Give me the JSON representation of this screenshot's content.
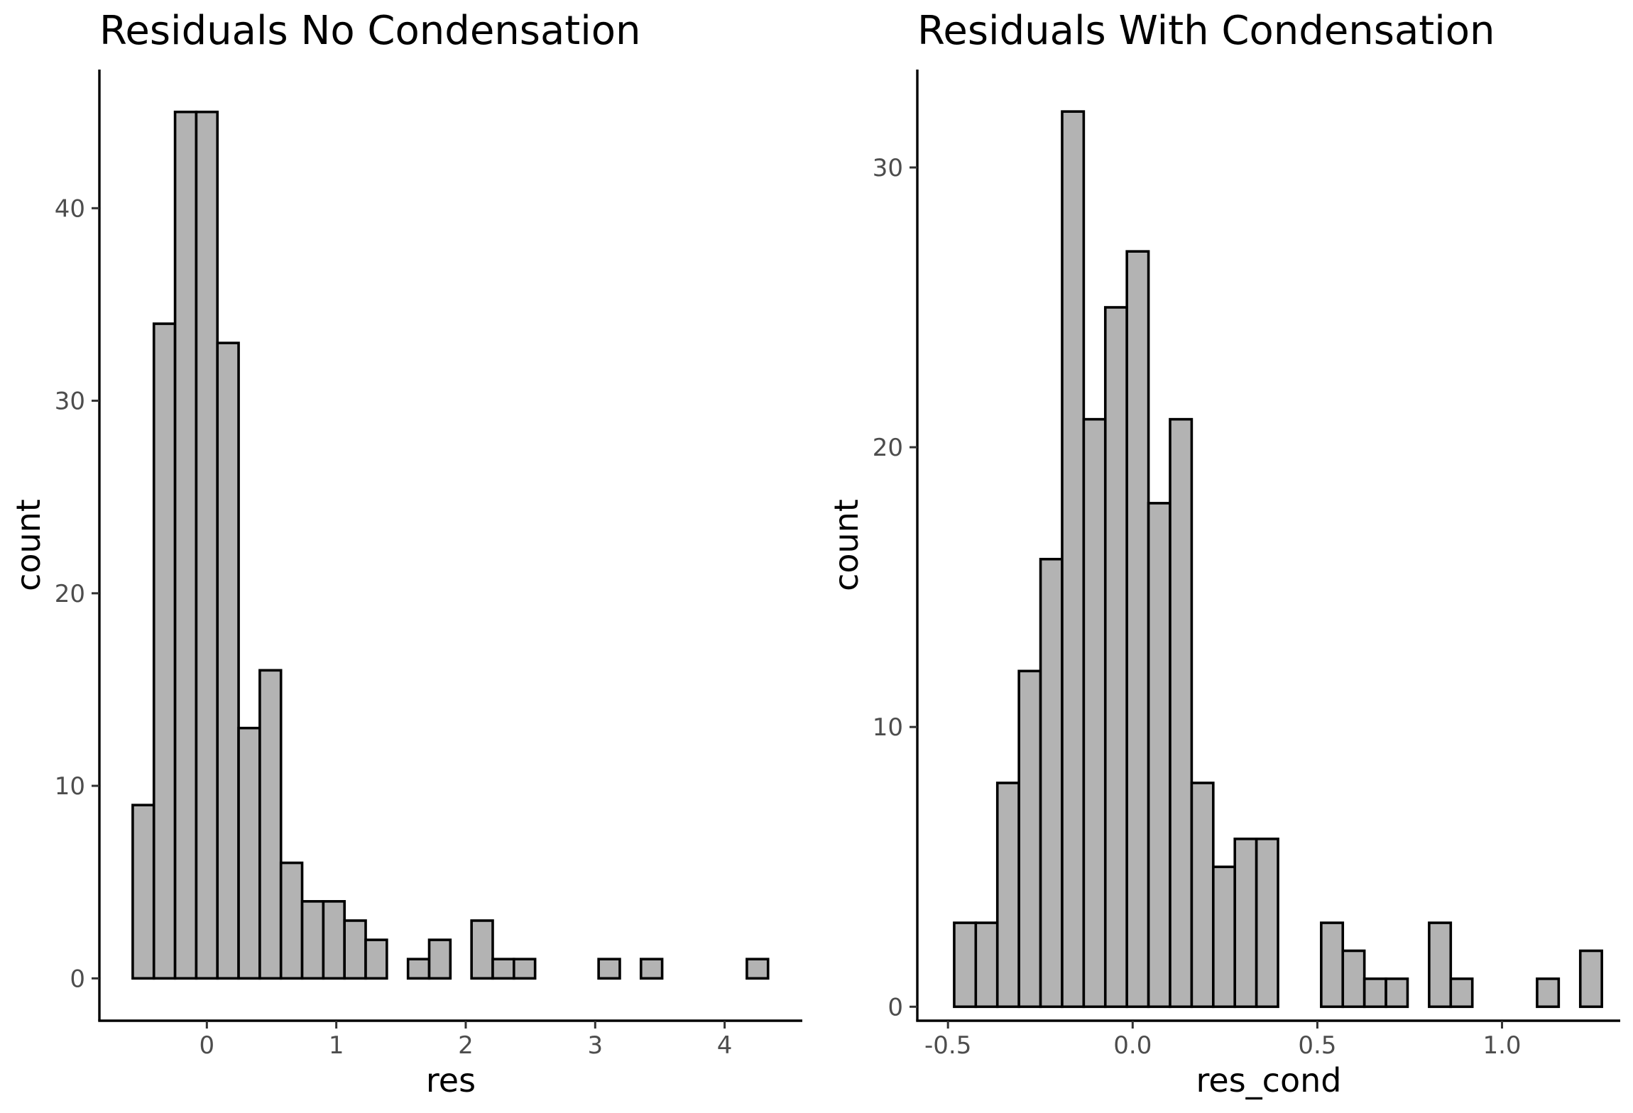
{
  "chart_data": [
    {
      "type": "bar",
      "title": "Residuals No Condensation",
      "xlabel": "res",
      "ylabel": "count",
      "xlim": [
        -0.83,
        4.6
      ],
      "ylim": [
        -2.2,
        47.2
      ],
      "bin_width": 0.1636,
      "bin_start": -0.5727,
      "counts": [
        9,
        34,
        45,
        45,
        33,
        13,
        16,
        6,
        4,
        4,
        3,
        2,
        0,
        1,
        2,
        0,
        3,
        1,
        1,
        0,
        0,
        0,
        1,
        0,
        1,
        0,
        0,
        0,
        0,
        1
      ],
      "x_ticks": [
        {
          "value": 0,
          "label": "0"
        },
        {
          "value": 1,
          "label": "1"
        },
        {
          "value": 2,
          "label": "2"
        },
        {
          "value": 3,
          "label": "3"
        },
        {
          "value": 4,
          "label": "4"
        }
      ],
      "y_ticks": [
        {
          "value": 0,
          "label": "0"
        },
        {
          "value": 10,
          "label": "10"
        },
        {
          "value": 20,
          "label": "20"
        },
        {
          "value": 30,
          "label": "30"
        },
        {
          "value": 40,
          "label": "40"
        }
      ],
      "grid": false,
      "fill_color": "#b3b3b3",
      "edge_color": "#000000"
    },
    {
      "type": "bar",
      "title": "Residuals With Condensation",
      "xlabel": "res_cond",
      "ylabel": "count",
      "xlim": [
        -0.583,
        1.32
      ],
      "ylim": [
        -0.5,
        33.5
      ],
      "bin_width": 0.05845,
      "bin_start": -0.4832,
      "counts": [
        3,
        3,
        8,
        12,
        16,
        32,
        21,
        25,
        27,
        18,
        21,
        8,
        5,
        6,
        6,
        0,
        0,
        3,
        2,
        1,
        1,
        0,
        3,
        1,
        0,
        0,
        0,
        1,
        0,
        2
      ],
      "x_ticks": [
        {
          "value": -0.5,
          "label": "-0.5"
        },
        {
          "value": 0.0,
          "label": "0.0"
        },
        {
          "value": 0.5,
          "label": "0.5"
        },
        {
          "value": 1.0,
          "label": "1.0"
        }
      ],
      "y_ticks": [
        {
          "value": 0,
          "label": "0"
        },
        {
          "value": 10,
          "label": "10"
        },
        {
          "value": 20,
          "label": "20"
        },
        {
          "value": 30,
          "label": "30"
        }
      ],
      "grid": false,
      "fill_color": "#b3b3b3",
      "edge_color": "#000000"
    }
  ]
}
